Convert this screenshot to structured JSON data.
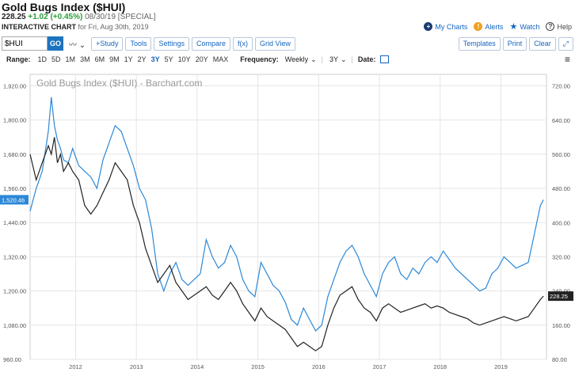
{
  "header": {
    "title": "Gold Bugs Index ($HUI)",
    "last": "228.25",
    "change": "+1.02 (+0.45%)",
    "date_info": "08/30/19 [SPECIAL]",
    "interactive_label": "INTERACTIVE CHART",
    "interactive_sub": "for Fri, Aug 30th, 2019"
  },
  "top_links": {
    "my_charts": "My Charts",
    "alerts": "Alerts",
    "watch": "Watch",
    "help": "Help"
  },
  "toolbar": {
    "symbol_value": "$HUI",
    "go_label": "GO",
    "study_label": "+Study",
    "tools_label": "Tools",
    "settings_label": "Settings",
    "compare_label": "Compare",
    "fx_label": "f(x)",
    "grid_label": "Grid View",
    "templates_label": "Templates",
    "print_label": "Print",
    "clear_label": "Clear"
  },
  "rangebar": {
    "range_label": "Range:",
    "ranges": [
      "1D",
      "5D",
      "1M",
      "3M",
      "6M",
      "9M",
      "1Y",
      "2Y",
      "3Y",
      "5Y",
      "10Y",
      "20Y",
      "MAX"
    ],
    "active_range": "3Y",
    "frequency_label": "Frequency:",
    "frequency_value": "Weekly",
    "period_value": "3Y",
    "date_label": "Date:"
  },
  "chart_data": {
    "type": "line",
    "title": "Gold Bugs Index ($HUI) - Barchart.com",
    "x_labels": [
      "2012",
      "2013",
      "2014",
      "2015",
      "2016",
      "2017",
      "2018",
      "2019"
    ],
    "x_range": [
      2011.25,
      2019.75
    ],
    "left_axis": {
      "ticks": [
        960,
        1080,
        1200,
        1320,
        1440,
        1560,
        1680,
        1800,
        1920
      ],
      "range": [
        960,
        1960
      ]
    },
    "right_axis": {
      "ticks": [
        80,
        160,
        240,
        320,
        400,
        480,
        560,
        640,
        720
      ],
      "range": [
        80,
        747
      ]
    },
    "series": [
      {
        "color": "#2b88d8",
        "axis": "left",
        "last_label": "1,520.46",
        "x": [
          2011.25,
          2011.35,
          2011.45,
          2011.55,
          2011.6,
          2011.65,
          2011.7,
          2011.75,
          2011.8,
          2011.88,
          2011.95,
          2012.05,
          2012.15,
          2012.25,
          2012.35,
          2012.45,
          2012.55,
          2012.65,
          2012.75,
          2012.85,
          2012.95,
          2013.05,
          2013.15,
          2013.25,
          2013.35,
          2013.45,
          2013.55,
          2013.65,
          2013.75,
          2013.85,
          2013.95,
          2014.05,
          2014.15,
          2014.25,
          2014.35,
          2014.45,
          2014.55,
          2014.65,
          2014.75,
          2014.85,
          2014.95,
          2015.05,
          2015.15,
          2015.25,
          2015.35,
          2015.45,
          2015.55,
          2015.65,
          2015.75,
          2015.85,
          2015.95,
          2016.05,
          2016.15,
          2016.25,
          2016.35,
          2016.45,
          2016.55,
          2016.65,
          2016.75,
          2016.85,
          2016.95,
          2017.05,
          2017.15,
          2017.25,
          2017.35,
          2017.45,
          2017.55,
          2017.65,
          2017.75,
          2017.85,
          2017.95,
          2018.05,
          2018.15,
          2018.25,
          2018.35,
          2018.45,
          2018.55,
          2018.65,
          2018.75,
          2018.85,
          2018.95,
          2019.05,
          2019.15,
          2019.25,
          2019.35,
          2019.45,
          2019.55,
          2019.65,
          2019.7
        ],
        "y": [
          1480,
          1560,
          1620,
          1760,
          1880,
          1780,
          1730,
          1700,
          1660,
          1650,
          1700,
          1640,
          1620,
          1600,
          1560,
          1660,
          1720,
          1780,
          1760,
          1700,
          1640,
          1560,
          1520,
          1420,
          1260,
          1200,
          1260,
          1300,
          1240,
          1220,
          1240,
          1260,
          1380,
          1320,
          1280,
          1300,
          1360,
          1320,
          1240,
          1200,
          1180,
          1300,
          1260,
          1220,
          1200,
          1160,
          1100,
          1080,
          1140,
          1100,
          1060,
          1080,
          1180,
          1240,
          1300,
          1340,
          1360,
          1320,
          1260,
          1220,
          1180,
          1260,
          1300,
          1320,
          1260,
          1240,
          1280,
          1260,
          1300,
          1320,
          1300,
          1340,
          1310,
          1280,
          1260,
          1240,
          1220,
          1200,
          1210,
          1260,
          1280,
          1320,
          1300,
          1280,
          1290,
          1300,
          1400,
          1500,
          1520
        ]
      },
      {
        "color": "#222222",
        "axis": "right",
        "last_label": "228.25",
        "x": [
          2011.25,
          2011.35,
          2011.45,
          2011.55,
          2011.6,
          2011.65,
          2011.7,
          2011.75,
          2011.8,
          2011.88,
          2011.95,
          2012.05,
          2012.15,
          2012.25,
          2012.35,
          2012.45,
          2012.55,
          2012.65,
          2012.75,
          2012.85,
          2012.95,
          2013.05,
          2013.15,
          2013.25,
          2013.35,
          2013.45,
          2013.55,
          2013.65,
          2013.75,
          2013.85,
          2013.95,
          2014.05,
          2014.15,
          2014.25,
          2014.35,
          2014.45,
          2014.55,
          2014.65,
          2014.75,
          2014.85,
          2014.95,
          2015.05,
          2015.15,
          2015.25,
          2015.35,
          2015.45,
          2015.55,
          2015.65,
          2015.75,
          2015.85,
          2015.95,
          2016.05,
          2016.15,
          2016.25,
          2016.35,
          2016.45,
          2016.55,
          2016.65,
          2016.75,
          2016.85,
          2016.95,
          2017.05,
          2017.15,
          2017.25,
          2017.35,
          2017.45,
          2017.55,
          2017.65,
          2017.75,
          2017.85,
          2017.95,
          2018.05,
          2018.15,
          2018.25,
          2018.35,
          2018.45,
          2018.55,
          2018.65,
          2018.75,
          2018.85,
          2018.95,
          2019.05,
          2019.15,
          2019.25,
          2019.35,
          2019.45,
          2019.55,
          2019.65,
          2019.7
        ],
        "y": [
          560,
          500,
          540,
          580,
          560,
          600,
          540,
          560,
          520,
          540,
          520,
          500,
          440,
          420,
          440,
          470,
          500,
          540,
          520,
          500,
          440,
          400,
          340,
          300,
          260,
          280,
          300,
          260,
          240,
          220,
          230,
          240,
          250,
          230,
          220,
          240,
          260,
          240,
          210,
          190,
          170,
          200,
          180,
          170,
          160,
          150,
          130,
          110,
          120,
          110,
          100,
          110,
          160,
          200,
          230,
          240,
          250,
          220,
          200,
          190,
          170,
          200,
          210,
          200,
          190,
          195,
          200,
          205,
          210,
          200,
          205,
          200,
          190,
          185,
          180,
          175,
          165,
          160,
          165,
          170,
          175,
          180,
          175,
          170,
          175,
          180,
          200,
          220,
          228
        ]
      }
    ]
  }
}
